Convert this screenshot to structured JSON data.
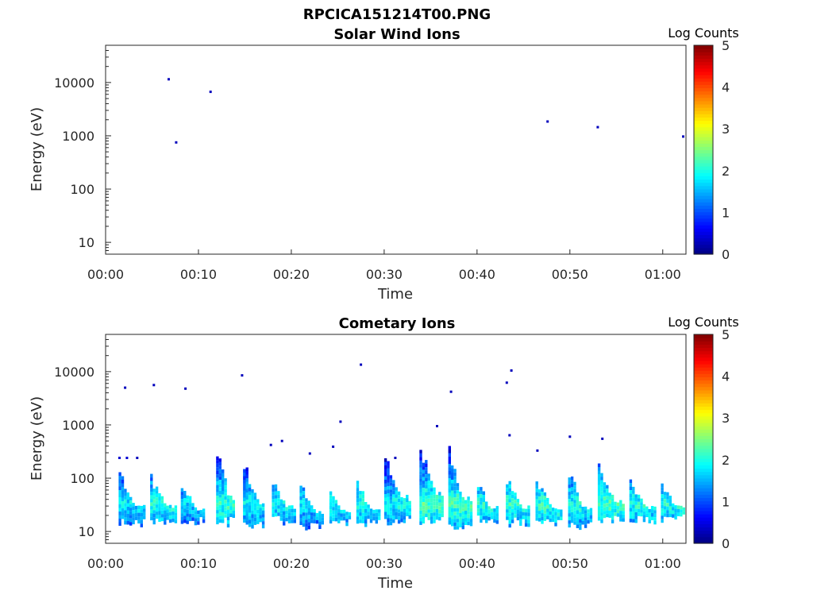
{
  "figure_title": "RPCICA151214T00.PNG",
  "colormap": [
    "#00007f",
    "#0000ff",
    "#007fff",
    "#00ffff",
    "#7fff7f",
    "#ffff00",
    "#ff7f00",
    "#ff0000",
    "#7f0000"
  ],
  "chart_data": [
    {
      "type": "heatmap",
      "title": "Solar Wind Ions",
      "xlabel": "Time",
      "ylabel": "Energy (eV)",
      "x_tick_labels": [
        "00:00",
        "00:10",
        "00:20",
        "00:30",
        "00:40",
        "00:50",
        "01:00"
      ],
      "x_tick_minutes": [
        0,
        10,
        20,
        30,
        40,
        50,
        60
      ],
      "xlim_minutes": [
        0,
        62.5
      ],
      "yscale": "log",
      "ylim": [
        6,
        50000
      ],
      "y_tick_labels": [
        "10",
        "100",
        "1000",
        "10000"
      ],
      "y_tick_values": [
        10,
        100,
        1000,
        10000
      ],
      "colorbar": {
        "label": "Log Counts",
        "range": [
          0,
          5
        ],
        "tick_labels": [
          "0",
          "1",
          "2",
          "3",
          "4",
          "5"
        ]
      },
      "points": [
        {
          "t": 6.8,
          "e": 11500,
          "v": 0.3
        },
        {
          "t": 7.6,
          "e": 750,
          "v": 0.3
        },
        {
          "t": 11.3,
          "e": 6700,
          "v": 0.3
        },
        {
          "t": 47.6,
          "e": 1850,
          "v": 0.3
        },
        {
          "t": 53.0,
          "e": 1450,
          "v": 0.3
        },
        {
          "t": 62.2,
          "e": 970,
          "v": 0.3
        }
      ],
      "bursts": []
    },
    {
      "type": "heatmap",
      "title": "Cometary Ions",
      "xlabel": "Time",
      "ylabel": "Energy (eV)",
      "x_tick_labels": [
        "00:00",
        "00:10",
        "00:20",
        "00:30",
        "00:40",
        "00:50",
        "01:00"
      ],
      "x_tick_minutes": [
        0,
        10,
        20,
        30,
        40,
        50,
        60
      ],
      "xlim_minutes": [
        0,
        62.5
      ],
      "yscale": "log",
      "ylim": [
        6,
        50000
      ],
      "y_tick_labels": [
        "10",
        "100",
        "1000",
        "10000"
      ],
      "y_tick_values": [
        10,
        100,
        1000,
        10000
      ],
      "colorbar": {
        "label": "Log Counts",
        "range": [
          0,
          5
        ],
        "tick_labels": [
          "0",
          "1",
          "2",
          "3",
          "4",
          "5"
        ]
      },
      "points": [
        {
          "t": 2.1,
          "e": 5000,
          "v": 0.3
        },
        {
          "t": 5.2,
          "e": 5600,
          "v": 0.3
        },
        {
          "t": 8.6,
          "e": 4800,
          "v": 0.3
        },
        {
          "t": 14.7,
          "e": 8500,
          "v": 0.3
        },
        {
          "t": 27.5,
          "e": 13500,
          "v": 0.3
        },
        {
          "t": 25.3,
          "e": 1150,
          "v": 0.3
        },
        {
          "t": 37.2,
          "e": 4200,
          "v": 0.3
        },
        {
          "t": 43.2,
          "e": 6200,
          "v": 0.3
        },
        {
          "t": 43.7,
          "e": 10500,
          "v": 0.3
        },
        {
          "t": 43.5,
          "e": 640,
          "v": 0.3
        },
        {
          "t": 17.8,
          "e": 420,
          "v": 0.3
        },
        {
          "t": 19.0,
          "e": 500,
          "v": 0.3
        },
        {
          "t": 22.0,
          "e": 290,
          "v": 0.3
        },
        {
          "t": 24.5,
          "e": 390,
          "v": 0.3
        },
        {
          "t": 31.2,
          "e": 240,
          "v": 0.3
        },
        {
          "t": 35.7,
          "e": 950,
          "v": 0.3
        },
        {
          "t": 46.5,
          "e": 330,
          "v": 0.3
        },
        {
          "t": 50.0,
          "e": 600,
          "v": 0.3
        },
        {
          "t": 53.5,
          "e": 550,
          "v": 0.3
        },
        {
          "t": 1.5,
          "e": 240,
          "v": 0.4
        },
        {
          "t": 2.3,
          "e": 240,
          "v": 0.4
        },
        {
          "t": 3.4,
          "e": 240,
          "v": 0.3
        }
      ],
      "bursts": [
        {
          "t0": 1.4,
          "t1": 4.4,
          "emin": 14,
          "emax": 160,
          "peak": 1.8
        },
        {
          "t0": 4.8,
          "t1": 7.6,
          "emin": 15,
          "emax": 130,
          "peak": 2.0
        },
        {
          "t0": 8.1,
          "t1": 10.6,
          "emin": 15,
          "emax": 90,
          "peak": 1.7
        },
        {
          "t0": 11.9,
          "t1": 14.0,
          "emin": 15,
          "emax": 550,
          "peak": 2.1
        },
        {
          "t0": 14.8,
          "t1": 17.2,
          "emin": 14,
          "emax": 300,
          "peak": 1.9
        },
        {
          "t0": 17.9,
          "t1": 20.4,
          "emin": 16,
          "emax": 110,
          "peak": 1.9
        },
        {
          "t0": 20.9,
          "t1": 23.6,
          "emin": 12,
          "emax": 90,
          "peak": 1.8
        },
        {
          "t0": 24.1,
          "t1": 26.4,
          "emin": 14,
          "emax": 80,
          "peak": 1.9
        },
        {
          "t0": 27.0,
          "t1": 29.6,
          "emin": 14,
          "emax": 100,
          "peak": 2.0
        },
        {
          "t0": 30.0,
          "t1": 33.0,
          "emin": 16,
          "emax": 400,
          "peak": 1.9
        },
        {
          "t0": 33.8,
          "t1": 36.5,
          "emin": 16,
          "emax": 650,
          "peak": 2.2
        },
        {
          "t0": 36.9,
          "t1": 39.5,
          "emin": 12,
          "emax": 600,
          "peak": 2.2
        },
        {
          "t0": 40.0,
          "t1": 42.4,
          "emin": 16,
          "emax": 100,
          "peak": 2.0
        },
        {
          "t0": 43.1,
          "t1": 45.6,
          "emin": 15,
          "emax": 120,
          "peak": 2.1
        },
        {
          "t0": 46.3,
          "t1": 49.2,
          "emin": 15,
          "emax": 110,
          "peak": 2.1
        },
        {
          "t0": 49.8,
          "t1": 52.4,
          "emin": 12,
          "emax": 180,
          "peak": 2.0
        },
        {
          "t0": 53.0,
          "t1": 55.8,
          "emin": 16,
          "emax": 240,
          "peak": 2.2
        },
        {
          "t0": 56.4,
          "t1": 59.2,
          "emin": 16,
          "emax": 100,
          "peak": 2.0
        },
        {
          "t0": 59.8,
          "t1": 62.4,
          "emin": 17,
          "emax": 100,
          "peak": 2.0
        }
      ]
    }
  ]
}
